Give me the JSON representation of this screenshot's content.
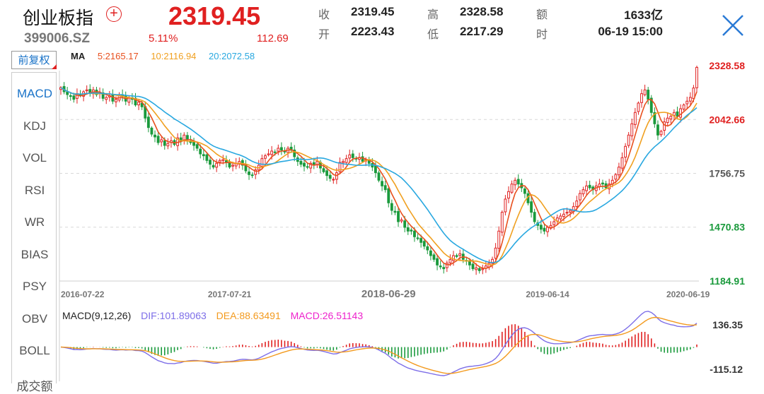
{
  "header": {
    "name": "创业板指",
    "code": "399006.SZ",
    "price": "2319.45",
    "change_pct": "5.11%",
    "change": "112.69",
    "add_symbol": "+"
  },
  "stats": {
    "close_label": "收",
    "close_value": "2319.45",
    "open_label": "开",
    "open_value": "2223.43",
    "high_label": "高",
    "high_value": "2328.58",
    "low_label": "低",
    "low_value": "2217.29",
    "amount_label": "额",
    "amount_value": "1633亿",
    "time_label": "时",
    "time_value": "06-19 15:00"
  },
  "controls": {
    "rights_label": "前复权",
    "tabs": [
      "MACD",
      "KDJ",
      "VOL",
      "RSI",
      "WR",
      "BIAS",
      "PSY",
      "OBV",
      "BOLL",
      "成交额"
    ],
    "active_tab": "MACD"
  },
  "ma_legend": {
    "title": "MA",
    "items": [
      {
        "label": "5:2165.17",
        "color": "#e8501e"
      },
      {
        "label": "10:2116.94",
        "color": "#f0a020"
      },
      {
        "label": "20:2072.58",
        "color": "#29a8e0"
      }
    ]
  },
  "macd_legend": {
    "title": "MACD(9,12,26)",
    "dif": "DIF:101.89063",
    "dea": "DEA:88.63491",
    "macd": "MACD:26.51143",
    "dif_color": "#7d6ee8",
    "dea_color": "#f39a1e",
    "macd_color": "#ee22cc"
  },
  "colors": {
    "up": "#e02020",
    "down": "#1a9a3c",
    "axis_text": "#555555",
    "grid": "#d8d8d8"
  },
  "chart_data": [
    {
      "type": "candlestick",
      "title": "",
      "y_ticks": [
        "2328.58",
        "2042.66",
        "1756.75",
        "1470.83",
        "1184.91"
      ],
      "y_tick_colors": [
        "#e02020",
        "#e02020",
        "#555555",
        "#1a9a3c",
        "#1a9a3c"
      ],
      "ylim": [
        1184.91,
        2328.58
      ],
      "x_ticks": [
        "2016-07-22",
        "2017-07-21",
        "2018-06-29",
        "2019-06-14",
        "2020-06-19"
      ],
      "x_tick_index": [
        0,
        52,
        101,
        150,
        200
      ],
      "series": [
        {
          "name": "MA5",
          "values": [
            2165.17
          ]
        },
        {
          "name": "MA10",
          "values": [
            2116.94
          ]
        },
        {
          "name": "MA20",
          "values": [
            2072.58
          ]
        }
      ],
      "close": [
        2212,
        2190,
        2175,
        2165,
        2150,
        2180,
        2170,
        2190,
        2200,
        2185,
        2200,
        2175,
        2185,
        2155,
        2160,
        2170,
        2140,
        2150,
        2170,
        2165,
        2140,
        2160,
        2150,
        2120,
        2135,
        2110,
        2050,
        2000,
        1965,
        1950,
        1920,
        1935,
        1905,
        1915,
        1930,
        1910,
        1945,
        1925,
        1960,
        1935,
        1920,
        1905,
        1890,
        1860,
        1850,
        1825,
        1805,
        1790,
        1810,
        1825,
        1830,
        1815,
        1790,
        1800,
        1810,
        1820,
        1800,
        1770,
        1750,
        1745,
        1775,
        1800,
        1835,
        1850,
        1860,
        1875,
        1870,
        1890,
        1880,
        1870,
        1890,
        1880,
        1845,
        1820,
        1805,
        1795,
        1790,
        1810,
        1800,
        1820,
        1785,
        1765,
        1745,
        1730,
        1725,
        1760,
        1815,
        1820,
        1835,
        1855,
        1840,
        1835,
        1840,
        1820,
        1830,
        1810,
        1790,
        1760,
        1720,
        1690,
        1670,
        1600,
        1560,
        1550,
        1500,
        1510,
        1470,
        1450,
        1450,
        1420,
        1410,
        1390,
        1370,
        1350,
        1320,
        1300,
        1270,
        1260,
        1250,
        1280,
        1300,
        1320,
        1315,
        1330,
        1300,
        1290,
        1270,
        1250,
        1255,
        1240,
        1250,
        1265,
        1280,
        1300,
        1360,
        1450,
        1550,
        1620,
        1660,
        1700,
        1720,
        1700,
        1680,
        1650,
        1600,
        1550,
        1500,
        1480,
        1460,
        1450,
        1470,
        1480,
        1500,
        1520,
        1530,
        1540,
        1550,
        1560,
        1580,
        1610,
        1650,
        1670,
        1690,
        1680,
        1670,
        1690,
        1700,
        1700,
        1680,
        1700,
        1720,
        1750,
        1790,
        1840,
        1900,
        1960,
        2020,
        2080,
        2130,
        2180,
        2200,
        2150,
        2080,
        2020,
        1960,
        1980,
        2030,
        2050,
        2060,
        2080,
        2060,
        2100,
        2120,
        2140,
        2160,
        2210,
        2319.45
      ]
    },
    {
      "type": "bar+line",
      "title": "MACD(9,12,26)",
      "y_ticks": [
        "136.35",
        "-115.12"
      ],
      "ylim": [
        -115.12,
        136.35
      ],
      "series": [
        {
          "name": "DIF",
          "values": [
            101.89063
          ]
        },
        {
          "name": "DEA",
          "values": [
            88.63491
          ]
        },
        {
          "name": "MACD",
          "values": [
            26.51143
          ]
        }
      ]
    }
  ]
}
